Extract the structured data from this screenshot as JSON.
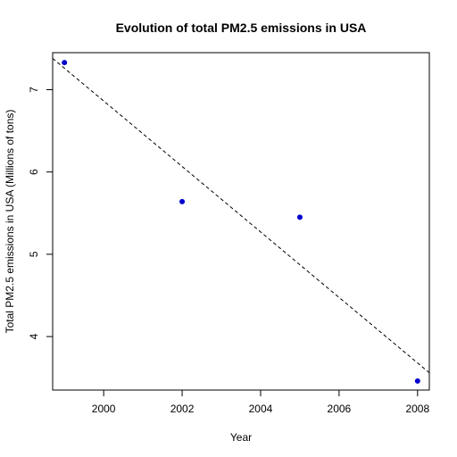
{
  "chart_data": {
    "type": "scatter",
    "title": "Evolution of total PM2.5 emissions in USA",
    "xlabel": "Year",
    "ylabel": "Total PM2.5 emissions in USA (Millions of tons)",
    "xlim": [
      1998.7,
      2008.3
    ],
    "ylim": [
      3.35,
      7.45
    ],
    "x_ticks": [
      2000,
      2002,
      2004,
      2006,
      2008
    ],
    "y_ticks": [
      4,
      5,
      6,
      7
    ],
    "series": [
      {
        "x": [
          1999,
          2002,
          2005,
          2008
        ],
        "y": [
          7.33,
          5.64,
          5.45,
          3.46
        ],
        "color": "#0000cc"
      }
    ],
    "trend_line": {
      "style": "dashed",
      "color": "#000000",
      "x": [
        1998.7,
        2008.3
      ],
      "y": [
        7.38,
        3.56
      ]
    },
    "grid": false,
    "legend": "none"
  }
}
